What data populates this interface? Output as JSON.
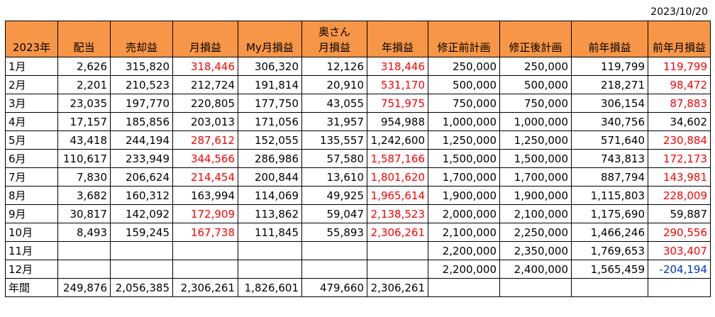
{
  "date": "2023/10/20",
  "headers": [
    {
      "l1": "",
      "l2": "2023年"
    },
    {
      "l1": "",
      "l2": "配当"
    },
    {
      "l1": "",
      "l2": "売却益"
    },
    {
      "l1": "",
      "l2": "月損益"
    },
    {
      "l1": "",
      "l2": "My月損益"
    },
    {
      "l1": "奥さん",
      "l2": "月損益"
    },
    {
      "l1": "",
      "l2": "年損益"
    },
    {
      "l1": "",
      "l2": "修正前計画"
    },
    {
      "l1": "",
      "l2": "修正後計画"
    },
    {
      "l1": "",
      "l2": "前年損益"
    },
    {
      "l1": "",
      "l2": "前年月損益"
    }
  ],
  "rows": [
    {
      "cells": [
        "1月",
        "2,626",
        "315,820",
        "318,446",
        "306,320",
        "12,126",
        "318,446",
        "250,000",
        "250,000",
        "119,799",
        "119,799"
      ],
      "colors": [
        "",
        "",
        "",
        "red",
        "",
        "",
        "red",
        "",
        "",
        "",
        "red"
      ]
    },
    {
      "cells": [
        "2月",
        "2,201",
        "210,523",
        "212,724",
        "191,814",
        "20,910",
        "531,170",
        "500,000",
        "500,000",
        "218,271",
        "98,472"
      ],
      "colors": [
        "",
        "",
        "",
        "",
        "",
        "",
        "red",
        "",
        "",
        "",
        "red"
      ]
    },
    {
      "cells": [
        "3月",
        "23,035",
        "197,770",
        "220,805",
        "177,750",
        "43,055",
        "751,975",
        "750,000",
        "750,000",
        "306,154",
        "87,883"
      ],
      "colors": [
        "",
        "",
        "",
        "",
        "",
        "",
        "red",
        "",
        "",
        "",
        "red"
      ]
    },
    {
      "cells": [
        "4月",
        "17,157",
        "185,856",
        "203,013",
        "171,056",
        "31,957",
        "954,988",
        "1,000,000",
        "1,000,000",
        "340,756",
        "34,602"
      ],
      "colors": [
        "",
        "",
        "",
        "",
        "",
        "",
        "",
        "",
        "",
        "",
        ""
      ]
    },
    {
      "cells": [
        "5月",
        "43,418",
        "244,194",
        "287,612",
        "152,055",
        "135,557",
        "1,242,600",
        "1,250,000",
        "1,250,000",
        "571,640",
        "230,884"
      ],
      "colors": [
        "",
        "",
        "",
        "red",
        "",
        "",
        "",
        "",
        "",
        "",
        "red"
      ]
    },
    {
      "cells": [
        "6月",
        "110,617",
        "233,949",
        "344,566",
        "286,986",
        "57,580",
        "1,587,166",
        "1,500,000",
        "1,500,000",
        "743,813",
        "172,173"
      ],
      "colors": [
        "",
        "",
        "",
        "red",
        "",
        "",
        "red",
        "",
        "",
        "",
        "red"
      ]
    },
    {
      "cells": [
        "7月",
        "7,830",
        "206,624",
        "214,454",
        "200,844",
        "13,610",
        "1,801,620",
        "1,700,000",
        "1,700,000",
        "887,794",
        "143,981"
      ],
      "colors": [
        "",
        "",
        "",
        "red",
        "",
        "",
        "red",
        "",
        "",
        "",
        "red"
      ]
    },
    {
      "cells": [
        "8月",
        "3,682",
        "160,312",
        "163,994",
        "114,069",
        "49,925",
        "1,965,614",
        "1,900,000",
        "1,900,000",
        "1,115,803",
        "228,009"
      ],
      "colors": [
        "",
        "",
        "",
        "",
        "",
        "",
        "red",
        "",
        "",
        "",
        "red"
      ]
    },
    {
      "cells": [
        "9月",
        "30,817",
        "142,092",
        "172,909",
        "113,862",
        "59,047",
        "2,138,523",
        "2,000,000",
        "2,100,000",
        "1,175,690",
        "59,887"
      ],
      "colors": [
        "",
        "",
        "",
        "red",
        "",
        "",
        "red",
        "",
        "",
        "",
        ""
      ]
    },
    {
      "cells": [
        "10月",
        "8,493",
        "159,245",
        "167,738",
        "111,845",
        "55,893",
        "2,306,261",
        "2,100,000",
        "2,250,000",
        "1,466,246",
        "290,556"
      ],
      "colors": [
        "",
        "",
        "",
        "red",
        "",
        "",
        "red",
        "",
        "",
        "",
        "red"
      ]
    },
    {
      "cells": [
        "11月",
        "",
        "",
        "",
        "",
        "",
        "",
        "2,200,000",
        "2,350,000",
        "1,769,653",
        "303,407"
      ],
      "colors": [
        "",
        "",
        "",
        "",
        "",
        "",
        "",
        "",
        "",
        "",
        "red"
      ]
    },
    {
      "cells": [
        "12月",
        "",
        "",
        "",
        "",
        "",
        "",
        "2,200,000",
        "2,400,000",
        "1,565,459",
        "-204,194"
      ],
      "colors": [
        "",
        "",
        "",
        "",
        "",
        "",
        "",
        "",
        "",
        "",
        "blue"
      ]
    },
    {
      "cells": [
        "年間",
        "249,876",
        "2,056,385",
        "2,306,261",
        "1,826,601",
        "479,660",
        "2,306,261",
        "",
        "",
        "",
        ""
      ],
      "colors": [
        "",
        "",
        "",
        "",
        "",
        "",
        "",
        "",
        "",
        "",
        ""
      ]
    }
  ],
  "colors": {
    "header_bg": "#f79646",
    "positive_highlight": "#ff0000",
    "negative": "#0033cc"
  }
}
